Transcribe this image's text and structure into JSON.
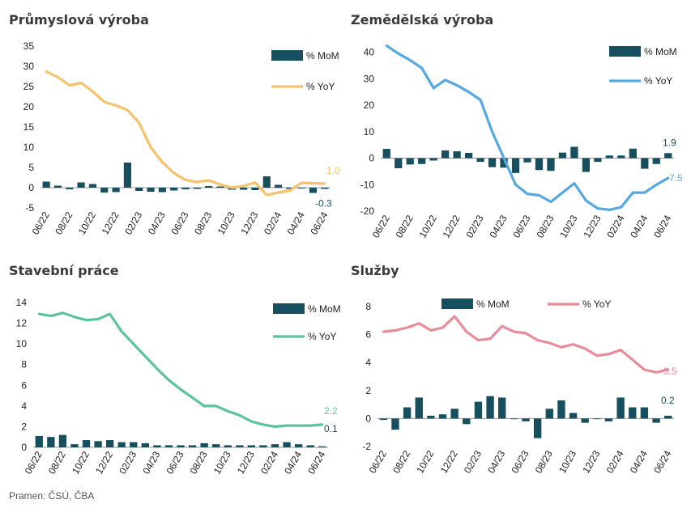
{
  "source": "Pramen: ČSÚ, ČBA",
  "colors": {
    "bar": "#174f5e",
    "ind_line": "#f6c26b",
    "agr_line": "#55a8e0",
    "con_line": "#5cc49a",
    "srv_line": "#e88c99",
    "axis": "#999999"
  },
  "chart_data": [
    {
      "id": "industry",
      "type": "bar+line",
      "title": "Průmyslová výroba",
      "categories": [
        "06/22",
        "07/22",
        "08/22",
        "09/22",
        "10/22",
        "11/22",
        "12/22",
        "01/23",
        "02/23",
        "03/23",
        "04/23",
        "05/23",
        "06/23",
        "07/23",
        "08/23",
        "09/23",
        "10/23",
        "11/23",
        "12/23",
        "01/24",
        "02/24",
        "03/24",
        "04/24",
        "05/24",
        "06/24"
      ],
      "tick_labels": [
        "06/22",
        "08/22",
        "10/22",
        "12/22",
        "02/23",
        "04/23",
        "06/23",
        "08/23",
        "10/23",
        "12/23",
        "02/24",
        "04/24",
        "06/24"
      ],
      "ylim": [
        -5,
        35
      ],
      "yticks": [
        -5,
        0,
        5,
        10,
        15,
        20,
        25,
        30,
        35
      ],
      "series": [
        {
          "name": "% MoM",
          "type": "bar",
          "values": [
            1.5,
            0.5,
            -0.4,
            1.3,
            0.9,
            -1.2,
            -1.1,
            6.2,
            -0.8,
            -1.0,
            -1.1,
            -0.7,
            -0.4,
            -0.3,
            0.4,
            0.3,
            -0.5,
            -0.5,
            -0.6,
            2.8,
            0.7,
            -0.3,
            -0.2,
            -1.3,
            -0.3
          ]
        },
        {
          "name": "% YoY",
          "type": "line",
          "values": [
            28.7,
            27.3,
            25.3,
            25.9,
            23.8,
            21.2,
            20.3,
            19.2,
            16.0,
            10.0,
            6.3,
            3.6,
            1.9,
            1.4,
            1.8,
            0.8,
            0.0,
            0.4,
            1.3,
            -1.8,
            -1.2,
            -0.7,
            1.2,
            1.1,
            1.0
          ]
        }
      ],
      "end_labels": {
        "yoy": "1.0",
        "mom": "-0.3"
      }
    },
    {
      "id": "agriculture",
      "type": "bar+line",
      "title": "Zemědělská výroba",
      "categories": [
        "06/22",
        "07/22",
        "08/22",
        "09/22",
        "10/22",
        "11/22",
        "12/22",
        "01/23",
        "02/23",
        "03/23",
        "04/23",
        "05/23",
        "06/23",
        "07/23",
        "08/23",
        "09/23",
        "10/23",
        "11/23",
        "12/23",
        "01/24",
        "02/24",
        "03/24",
        "04/24",
        "05/24",
        "06/24"
      ],
      "tick_labels": [
        "06/22",
        "08/22",
        "10/22",
        "12/22",
        "02/23",
        "04/23",
        "06/23",
        "08/23",
        "10/23",
        "12/23",
        "02/24",
        "04/24",
        "06/24"
      ],
      "ylim": [
        -20,
        42
      ],
      "yticks": [
        -20,
        -10,
        0,
        10,
        20,
        30,
        40
      ],
      "series": [
        {
          "name": "% MoM",
          "type": "bar",
          "values": [
            3.5,
            -3.8,
            -2.4,
            -2.2,
            -0.9,
            2.9,
            2.6,
            2.0,
            -1.4,
            -3.4,
            -3.6,
            -5.6,
            -1.6,
            -4.5,
            -4.8,
            2.1,
            4.3,
            -5.2,
            -1.4,
            1.0,
            1.0,
            3.6,
            -4.0,
            -2.2,
            1.9
          ]
        },
        {
          "name": "% YoY",
          "type": "line",
          "values": [
            42.5,
            39.5,
            37.0,
            34.0,
            26.5,
            29.5,
            27.5,
            25.0,
            22.0,
            10.0,
            0.0,
            -10.0,
            -13.5,
            -14.0,
            -16.5,
            -13.0,
            -9.5,
            -16.0,
            -19.0,
            -19.5,
            -18.5,
            -13.0,
            -13.0,
            -10.0,
            -7.5
          ]
        }
      ],
      "end_labels": {
        "yoy": "-7.5",
        "mom": "1.9"
      }
    },
    {
      "id": "construction",
      "type": "bar+line",
      "title": "Stavební práce",
      "categories": [
        "06/22",
        "07/22",
        "08/22",
        "09/22",
        "10/22",
        "11/22",
        "12/22",
        "01/23",
        "02/23",
        "03/23",
        "04/23",
        "05/23",
        "06/23",
        "07/23",
        "08/23",
        "09/23",
        "10/23",
        "11/23",
        "12/23",
        "01/24",
        "02/24",
        "03/24",
        "04/24",
        "05/24",
        "06/24"
      ],
      "tick_labels": [
        "06/22",
        "08/22",
        "10/22",
        "12/22",
        "02/23",
        "04/23",
        "06/23",
        "08/23",
        "10/23",
        "12/23",
        "02/24",
        "04/24",
        "06/24"
      ],
      "ylim": [
        0,
        14
      ],
      "yticks": [
        0,
        2,
        4,
        6,
        8,
        10,
        12,
        14
      ],
      "series": [
        {
          "name": "% MoM",
          "type": "bar",
          "values": [
            1.1,
            1.0,
            1.2,
            0.3,
            0.7,
            0.6,
            0.7,
            0.5,
            0.5,
            0.4,
            0.2,
            0.2,
            0.2,
            0.2,
            0.4,
            0.3,
            0.2,
            0.2,
            0.2,
            0.2,
            0.3,
            0.5,
            0.3,
            0.2,
            0.1
          ]
        },
        {
          "name": "% YoY",
          "type": "line",
          "values": [
            12.9,
            12.7,
            13.0,
            12.6,
            12.3,
            12.4,
            12.9,
            11.2,
            10.0,
            8.8,
            7.6,
            6.5,
            5.6,
            4.8,
            4.0,
            4.0,
            3.5,
            3.1,
            2.5,
            2.2,
            2.0,
            2.1,
            2.1,
            2.1,
            2.2
          ]
        }
      ],
      "end_labels": {
        "yoy": "2.2",
        "mom": "0.1"
      }
    },
    {
      "id": "services",
      "type": "bar+line",
      "title": "Služby",
      "categories": [
        "06/22",
        "07/22",
        "08/22",
        "09/22",
        "10/22",
        "11/22",
        "12/22",
        "01/23",
        "02/23",
        "03/23",
        "04/23",
        "05/23",
        "06/23",
        "07/23",
        "08/23",
        "09/23",
        "10/23",
        "11/23",
        "12/23",
        "01/24",
        "02/24",
        "03/24",
        "04/24",
        "05/24",
        "06/24"
      ],
      "tick_labels": [
        "06/22",
        "08/22",
        "10/22",
        "12/22",
        "02/23",
        "04/23",
        "06/23",
        "08/23",
        "10/23",
        "12/23",
        "02/24",
        "04/24",
        "06/24"
      ],
      "ylim": [
        -2,
        8
      ],
      "yticks": [
        -2,
        0,
        2,
        4,
        6,
        8
      ],
      "series": [
        {
          "name": "% MoM",
          "type": "bar",
          "values": [
            -0.1,
            -0.8,
            0.8,
            1.5,
            0.2,
            0.3,
            0.7,
            -0.4,
            1.2,
            1.6,
            1.5,
            0.0,
            -0.2,
            -1.4,
            0.7,
            1.3,
            0.4,
            -0.3,
            0.0,
            -0.2,
            1.5,
            0.8,
            0.8,
            -0.3,
            0.2
          ]
        },
        {
          "name": "% YoY",
          "type": "line",
          "values": [
            6.2,
            6.3,
            6.5,
            6.8,
            6.3,
            6.5,
            7.3,
            6.2,
            5.6,
            5.7,
            6.6,
            6.2,
            6.1,
            5.6,
            5.4,
            5.1,
            5.3,
            5.0,
            4.5,
            4.6,
            4.9,
            4.2,
            3.5,
            3.3,
            3.5
          ]
        }
      ],
      "end_labels": {
        "yoy": "3.5",
        "mom": "0.2"
      }
    }
  ]
}
